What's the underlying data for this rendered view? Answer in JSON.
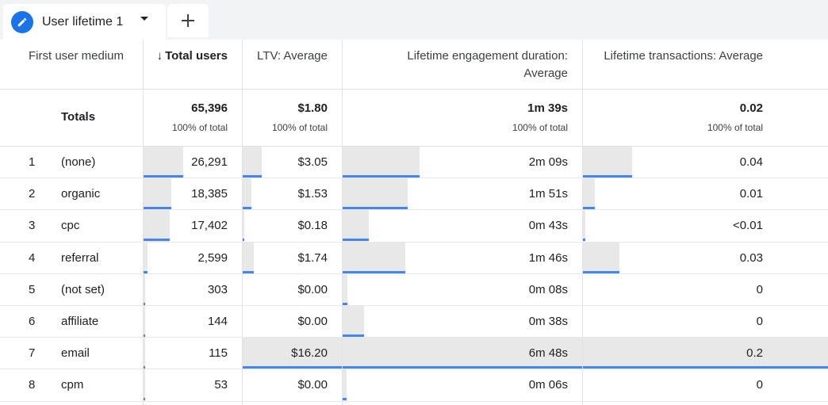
{
  "tabs": {
    "active": {
      "label": "User lifetime 1",
      "icon": "pencil-icon"
    },
    "add_icon": "plus-icon"
  },
  "columns": {
    "dimension": "First user medium",
    "total_users": "Total users",
    "ltv": "LTV: Average",
    "engagement_line1": "Lifetime engagement duration:",
    "engagement_line2": "Average",
    "transactions": "Lifetime transactions: Average"
  },
  "totals": {
    "label": "Totals",
    "total_users": "65,396",
    "ltv": "$1.80",
    "engagement": "1m 39s",
    "transactions": "0.02",
    "pct": "100% of total"
  },
  "rows": [
    {
      "rank": "1",
      "medium": "(none)",
      "total_users": "26,291",
      "ltv": "$3.05",
      "engagement": "2m 09s",
      "transactions": "0.04",
      "fill": {
        "users": 0.4,
        "ltv": 0.19,
        "eng": 0.32,
        "tx": 0.2
      }
    },
    {
      "rank": "2",
      "medium": "organic",
      "total_users": "18,385",
      "ltv": "$1.53",
      "engagement": "1m 51s",
      "transactions": "0.01",
      "fill": {
        "users": 0.28,
        "ltv": 0.09,
        "eng": 0.27,
        "tx": 0.05
      }
    },
    {
      "rank": "3",
      "medium": "cpc",
      "total_users": "17,402",
      "ltv": "$0.18",
      "engagement": "0m 43s",
      "transactions": "<0.01",
      "fill": {
        "users": 0.27,
        "ltv": 0.01,
        "eng": 0.11,
        "tx": 0.01
      }
    },
    {
      "rank": "4",
      "medium": "referral",
      "total_users": "2,599",
      "ltv": "$1.74",
      "engagement": "1m 46s",
      "transactions": "0.03",
      "fill": {
        "users": 0.04,
        "ltv": 0.11,
        "eng": 0.26,
        "tx": 0.15
      }
    },
    {
      "rank": "5",
      "medium": "(not set)",
      "total_users": "303",
      "ltv": "$0.00",
      "engagement": "0m 08s",
      "transactions": "0",
      "fill": {
        "users": 0.005,
        "ltv": 0.0,
        "eng": 0.02,
        "tx": 0.0
      }
    },
    {
      "rank": "6",
      "medium": "affiliate",
      "total_users": "144",
      "ltv": "$0.00",
      "engagement": "0m 38s",
      "transactions": "0",
      "fill": {
        "users": 0.002,
        "ltv": 0.0,
        "eng": 0.09,
        "tx": 0.0
      }
    },
    {
      "rank": "7",
      "medium": "email",
      "total_users": "115",
      "ltv": "$16.20",
      "engagement": "6m 48s",
      "transactions": "0.2",
      "fill": {
        "users": 0.002,
        "ltv": 1.0,
        "eng": 1.0,
        "tx": 1.0
      }
    },
    {
      "rank": "8",
      "medium": "cpm",
      "total_users": "53",
      "ltv": "$0.00",
      "engagement": "0m 06s",
      "transactions": "0",
      "fill": {
        "users": 0.001,
        "ltv": 0.0,
        "eng": 0.015,
        "tx": 0.0
      }
    }
  ],
  "colors": {
    "accent": "#1a73e8",
    "bar_fill": "#e8e8e8",
    "bar_underline": "#4285f4"
  }
}
